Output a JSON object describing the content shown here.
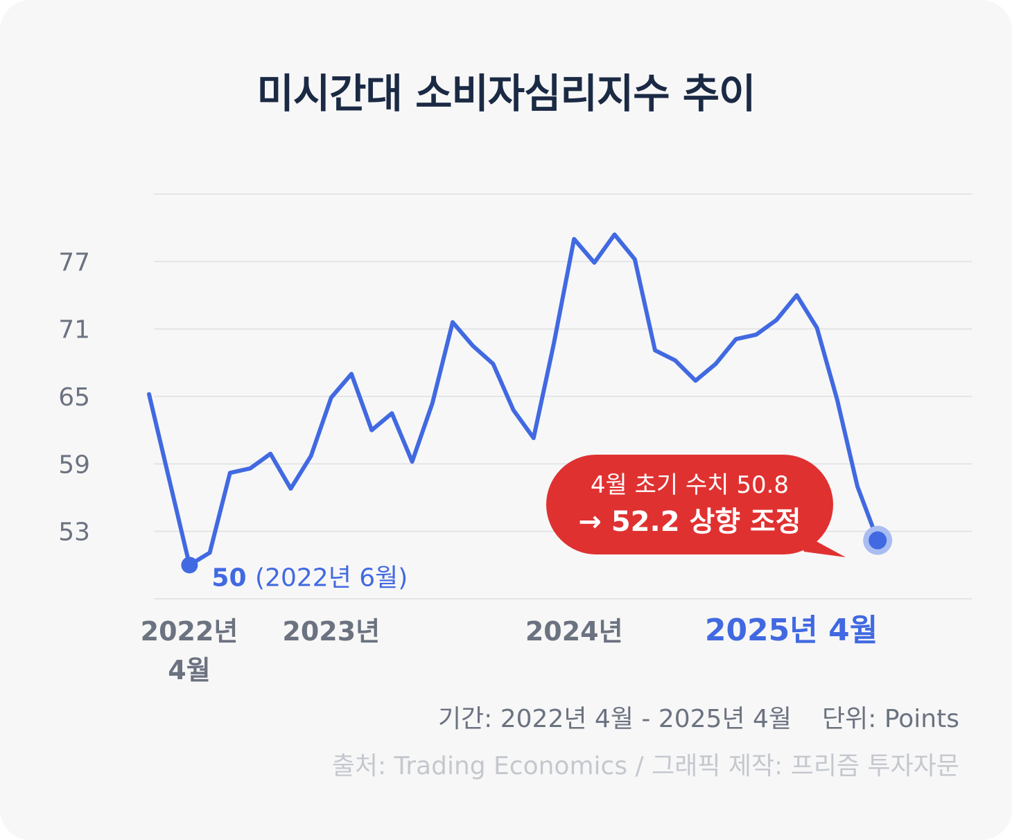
{
  "title": "미시간대 소비자심리지수 추이",
  "chart_data": {
    "type": "line",
    "title": "미시간대 소비자심리지수 추이",
    "xlabel": "",
    "ylabel": "",
    "yticks": [
      "77",
      "71",
      "65",
      "59",
      "53"
    ],
    "ylim": [
      47,
      83
    ],
    "grid": true,
    "legend": "none",
    "x_tick_labels": [
      {
        "label": "2022년",
        "label2": "4월",
        "date": "2022-04"
      },
      {
        "label": "2023년",
        "date": "2023-01"
      },
      {
        "label": "2024년",
        "date": "2024-01"
      },
      {
        "label": "2025년 4월",
        "date": "2025-04",
        "highlight": true
      }
    ],
    "line_color": "#4169e1",
    "series": [
      {
        "x": [
          "2022-04",
          "2022-06",
          "2022-07",
          "2022-08",
          "2022-09",
          "2022-10",
          "2022-11",
          "2022-12",
          "2023-01",
          "2023-02",
          "2023-03",
          "2023-04",
          "2023-05",
          "2023-06",
          "2023-07",
          "2023-08",
          "2023-09",
          "2023-10",
          "2023-11",
          "2023-12",
          "2024-01",
          "2024-02",
          "2024-03",
          "2024-04",
          "2024-05",
          "2024-06",
          "2024-07",
          "2024-08",
          "2024-09",
          "2024-10",
          "2024-11",
          "2024-12",
          "2025-01",
          "2025-02",
          "2025-03",
          "2025-04"
        ],
        "values": [
          65.2,
          50.0,
          51.1,
          58.2,
          58.6,
          59.9,
          56.8,
          59.7,
          64.9,
          67.0,
          62.0,
          63.5,
          59.2,
          64.4,
          71.6,
          69.5,
          67.9,
          63.8,
          61.3,
          69.7,
          79.0,
          76.9,
          79.4,
          77.2,
          69.1,
          68.2,
          66.4,
          67.9,
          70.1,
          70.5,
          71.8,
          74.0,
          71.1,
          64.7,
          57.0,
          52.2
        ]
      }
    ],
    "annotations": {
      "low_value": "50",
      "low_date": "(2022년 6월)",
      "callout_line1": "4월 초기 수치 50.8",
      "callout_line2": "→ 52.2 상향 조정"
    }
  },
  "footer": {
    "period": "기간: 2022년 4월 - 2025년 4월",
    "unit": "단위: Points",
    "source": "출처: Trading Economics / 그래픽 제작: 프리즘 투자자문"
  },
  "colors": {
    "line": "#4169e1",
    "callout": "#e03131",
    "title": "#1b2a44",
    "axis_text": "#6b7280",
    "source_text": "#c4c8ce",
    "background": "#f7f7f7"
  }
}
